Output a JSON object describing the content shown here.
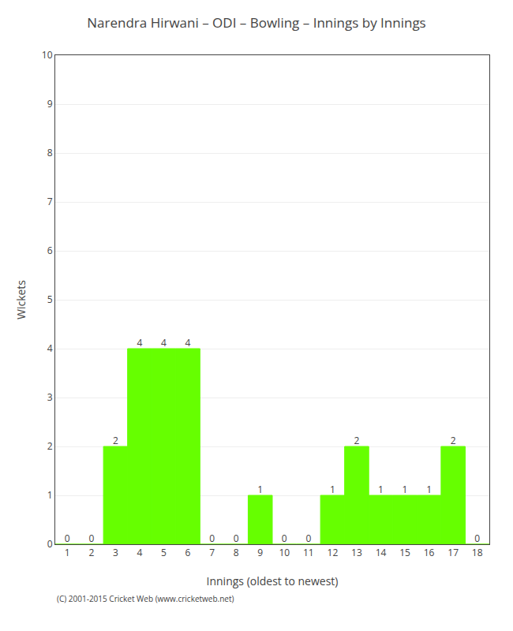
{
  "chart_data": {
    "type": "bar",
    "title": "Narendra Hirwani – ODI – Bowling – Innings by Innings",
    "xlabel": "Innings (oldest to newest)",
    "ylabel": "Wickets",
    "x": [
      1,
      2,
      3,
      4,
      5,
      6,
      7,
      8,
      9,
      10,
      11,
      12,
      13,
      14,
      15,
      16,
      17,
      18
    ],
    "values": [
      0,
      0,
      2,
      4,
      4,
      4,
      0,
      0,
      1,
      0,
      0,
      1,
      2,
      1,
      1,
      1,
      2,
      0
    ],
    "color": "#66ff00",
    "xlim": [
      0.5,
      18.5
    ],
    "xticks": [
      1,
      2,
      3,
      4,
      5,
      6,
      7,
      8,
      9,
      10,
      11,
      12,
      13,
      14,
      15,
      16,
      17,
      18
    ],
    "ylim": [
      0,
      10
    ],
    "yticks": [
      0,
      1,
      2,
      3,
      4,
      5,
      6,
      7,
      8,
      9,
      10
    ],
    "grid": true,
    "data_labels": true,
    "annotations": [
      "(C) 2001-2015 Cricket Web (www.cricketweb.net)"
    ]
  }
}
